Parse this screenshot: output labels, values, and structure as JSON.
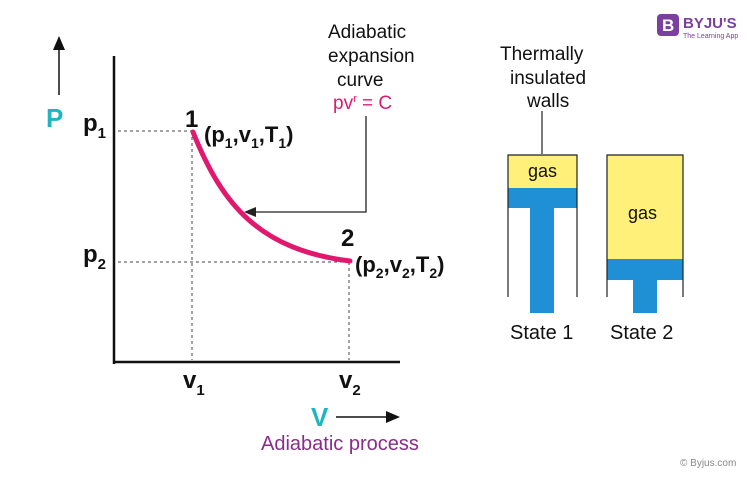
{
  "brand": {
    "name": "BYJU'S",
    "tagline": "The Learning App",
    "color": "#7b3fa0",
    "copyright": "© Byjus.com"
  },
  "graph": {
    "y_axis_symbol": "P",
    "x_axis_symbol": "V",
    "axis_symbol_color": "#1fb6c1",
    "process_label": "Adiabatic process",
    "process_label_color": "#8a2c8a",
    "curve_color": "#e0196e",
    "p1": {
      "base": "p",
      "sub": "1"
    },
    "p2": {
      "base": "p",
      "sub": "2"
    },
    "v1": {
      "base": "v",
      "sub": "1"
    },
    "v2": {
      "base": "v",
      "sub": "2"
    },
    "point1": {
      "number": "1",
      "state": [
        "p",
        "1",
        "v",
        "1",
        "T",
        "1"
      ]
    },
    "point2": {
      "number": "2",
      "state": [
        "p",
        "2",
        "v",
        "2",
        "T",
        "2"
      ]
    },
    "annotation": {
      "lines": [
        "Adiabatic",
        "expansion",
        "curve"
      ],
      "equation_base": "pv",
      "equation_sup": "r",
      "equation_rest": " = C",
      "equation_color": "#e0196e"
    }
  },
  "cylinders": {
    "walls_label": [
      "Thermally",
      "insulated",
      "walls"
    ],
    "gas_label": "gas",
    "gas_color": "#fff07a",
    "piston_color": "#1f8fd6",
    "state1_label": "State 1",
    "state2_label": "State 2"
  }
}
